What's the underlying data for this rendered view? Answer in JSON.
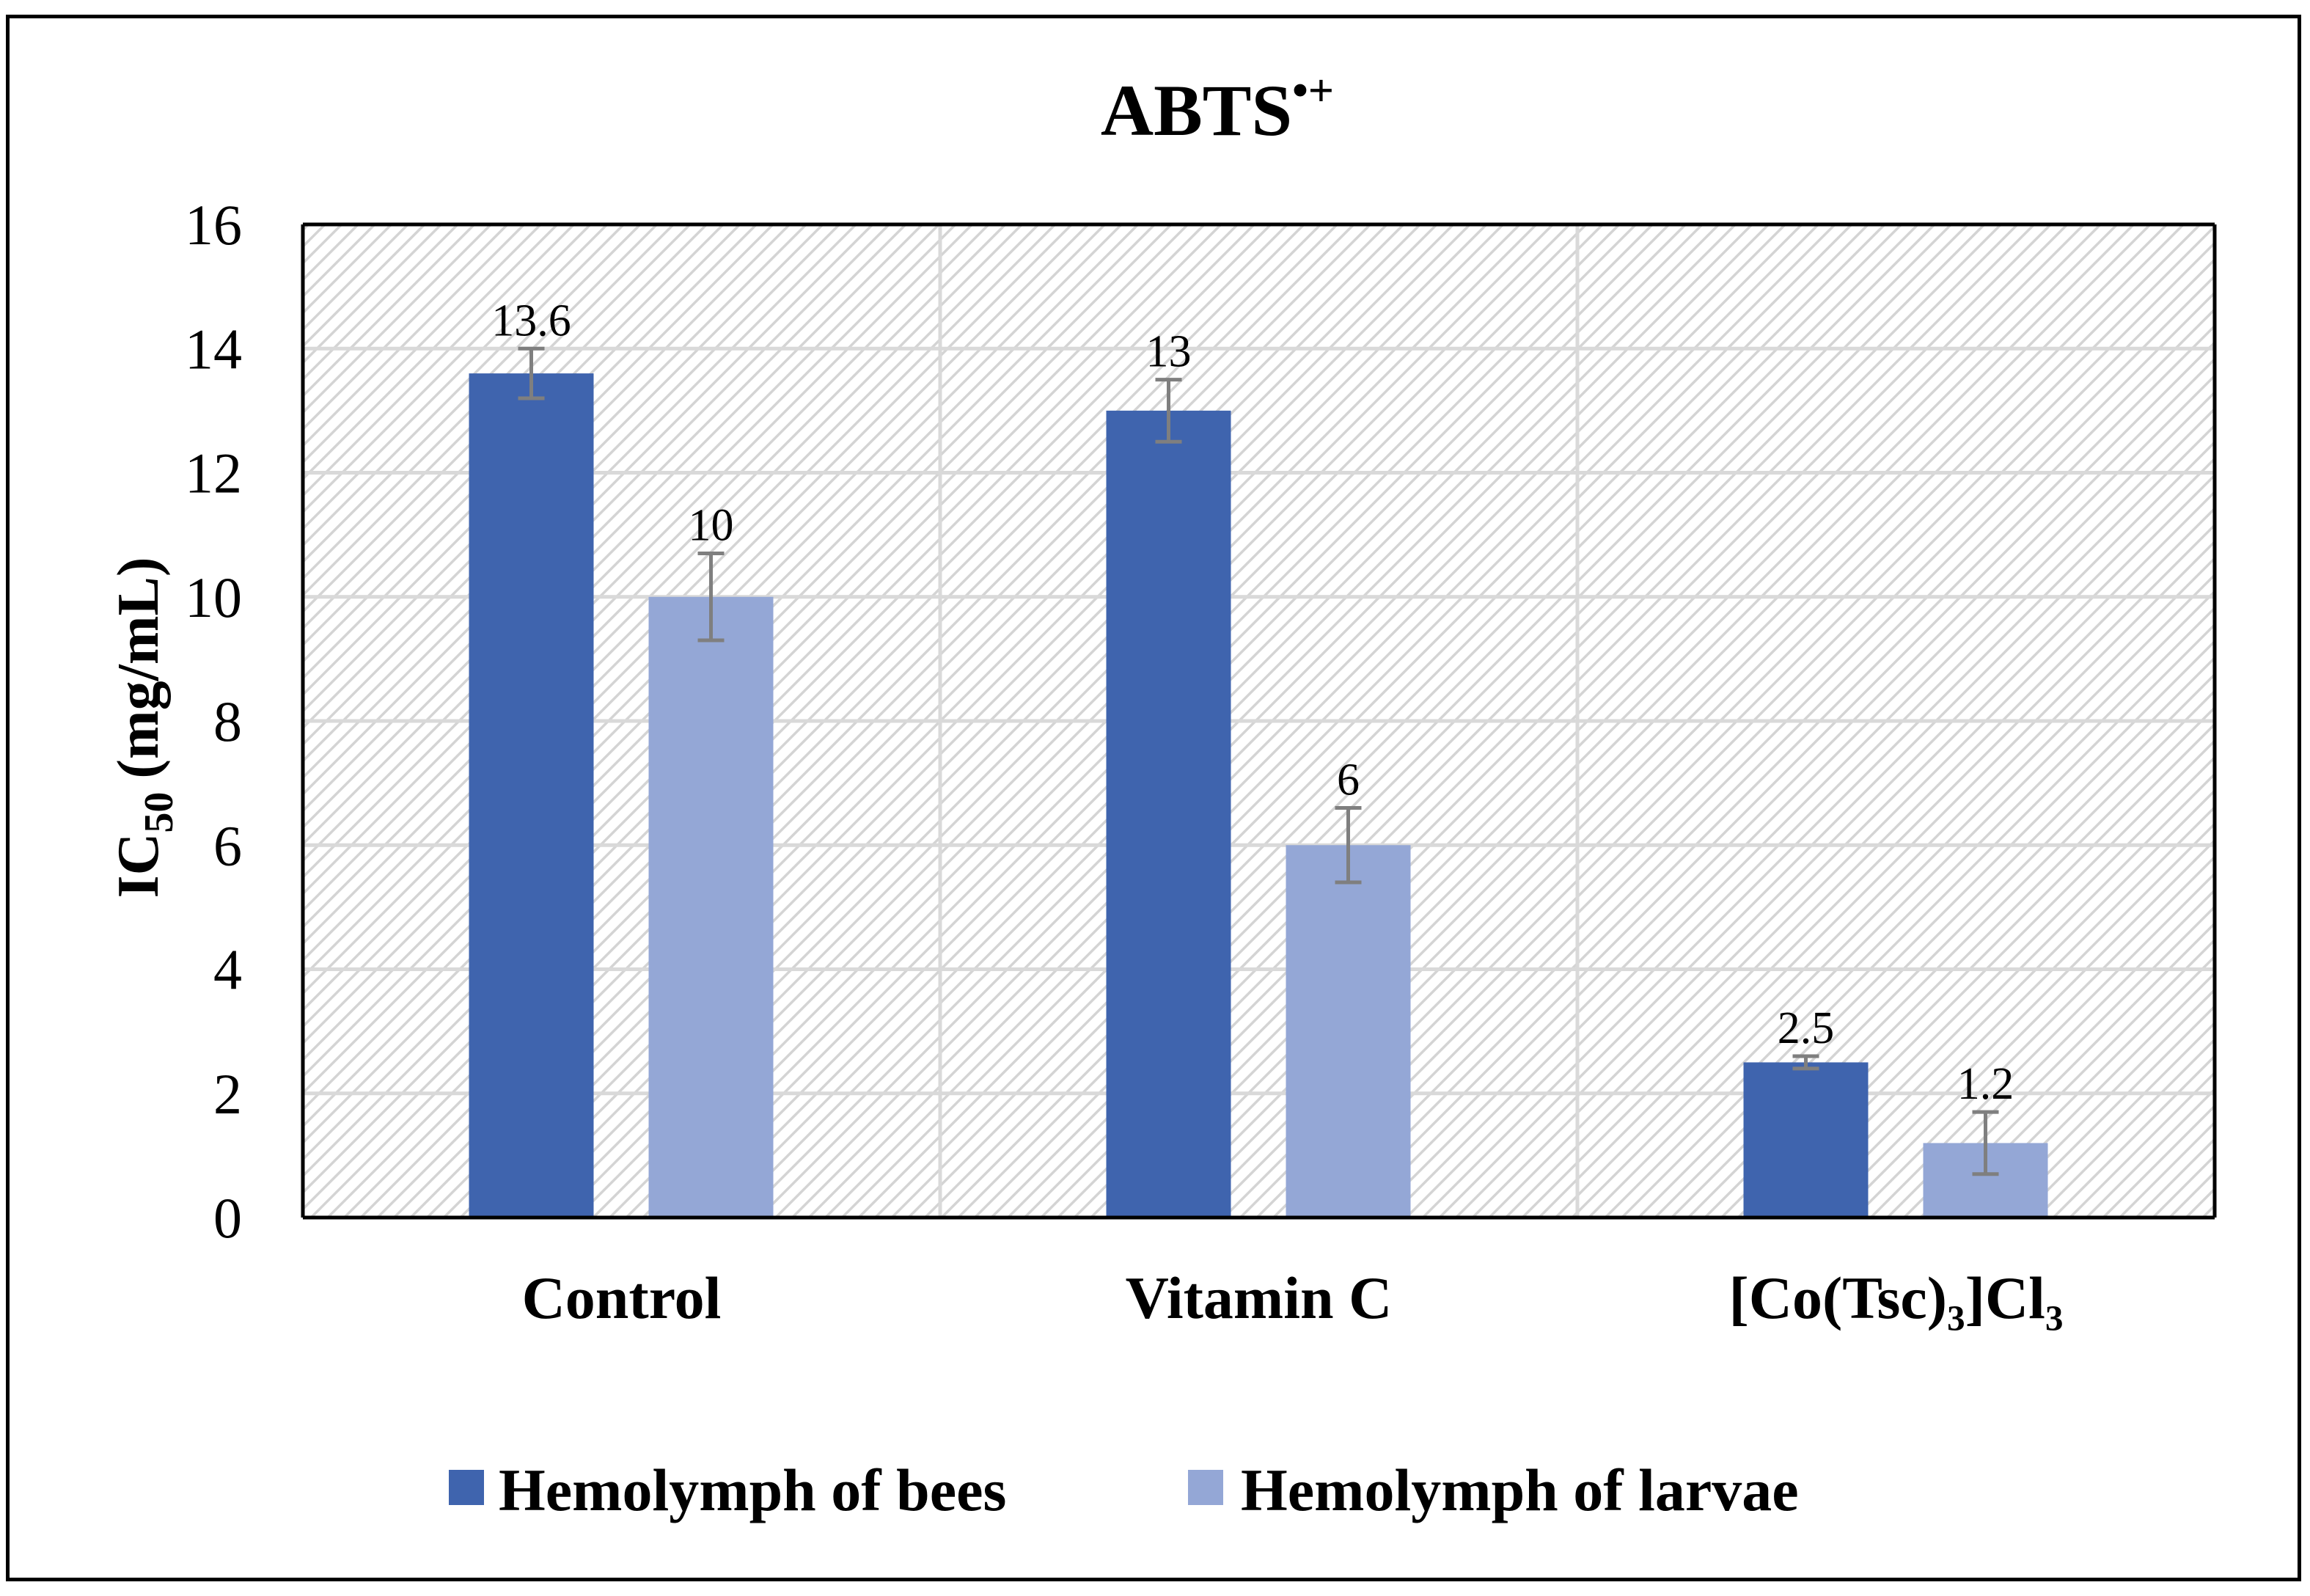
{
  "chart_data": {
    "type": "bar",
    "title": "ABTS",
    "title_superscript": "•+",
    "ylabel_main": "IC",
    "ylabel_subscript": "50",
    "ylabel_units": "(mg/mL)",
    "categories": [
      "Control",
      "Vitamin C",
      "[Co(Tsc)₃]Cl₃"
    ],
    "series": [
      {
        "name": "Hemolymph of bees",
        "color": "#3F64AE",
        "values": [
          13.6,
          13,
          2.5
        ],
        "labels": [
          "13.6",
          "13",
          "2.5"
        ],
        "errors": [
          0.4,
          0.5,
          0.1
        ]
      },
      {
        "name": "Hemolymph of larvae",
        "color": "#94A7D6",
        "values": [
          10,
          6,
          1.2
        ],
        "labels": [
          "10",
          "6",
          "1.2"
        ],
        "errors": [
          0.7,
          0.6,
          0.5
        ]
      }
    ],
    "ylim": [
      0,
      16
    ],
    "yticks": [
      "0",
      "2",
      "4",
      "6",
      "8",
      "10",
      "12",
      "14",
      "16"
    ],
    "grid": true,
    "legend_position": "bottom"
  },
  "colors": {
    "grid": "#D9D9D9",
    "hatch": "#D4D4D4",
    "axis": "#000000",
    "error_bar": "#7F7F7F"
  }
}
